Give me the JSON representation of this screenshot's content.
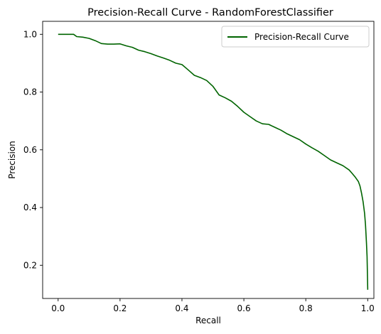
{
  "chart_data": {
    "type": "line",
    "title": "Precision-Recall Curve - RandomForestClassifier",
    "xlabel": "Recall",
    "ylabel": "Precision",
    "xlim": [
      -0.05,
      1.02
    ],
    "ylim": [
      0.085,
      1.045
    ],
    "xticks": [
      "0.0",
      "0.2",
      "0.4",
      "0.6",
      "0.8",
      "1.0"
    ],
    "xtick_values": [
      0.0,
      0.2,
      0.4,
      0.6,
      0.8,
      1.0
    ],
    "yticks": [
      "0.2",
      "0.4",
      "0.6",
      "0.8",
      "1.0"
    ],
    "ytick_values": [
      0.2,
      0.4,
      0.6,
      0.8,
      1.0
    ],
    "grid": false,
    "legend_placement": "top-right",
    "series": [
      {
        "name": "Precision-Recall Curve",
        "color": "#006400",
        "x": [
          0.0,
          0.05,
          0.06,
          0.08,
          0.1,
          0.12,
          0.14,
          0.16,
          0.18,
          0.2,
          0.22,
          0.24,
          0.26,
          0.28,
          0.3,
          0.32,
          0.34,
          0.36,
          0.38,
          0.4,
          0.42,
          0.44,
          0.46,
          0.48,
          0.5,
          0.52,
          0.54,
          0.56,
          0.58,
          0.6,
          0.62,
          0.64,
          0.66,
          0.68,
          0.7,
          0.72,
          0.74,
          0.76,
          0.78,
          0.8,
          0.82,
          0.84,
          0.86,
          0.88,
          0.9,
          0.92,
          0.94,
          0.95,
          0.96,
          0.97,
          0.975,
          0.98,
          0.985,
          0.99,
          0.993,
          0.996,
          0.998,
          0.999,
          1.0,
          1.0
        ],
        "y": [
          1.0,
          1.0,
          0.992,
          0.99,
          0.986,
          0.978,
          0.968,
          0.966,
          0.966,
          0.967,
          0.96,
          0.955,
          0.945,
          0.94,
          0.933,
          0.925,
          0.918,
          0.91,
          0.9,
          0.895,
          0.877,
          0.858,
          0.85,
          0.84,
          0.82,
          0.79,
          0.78,
          0.768,
          0.75,
          0.73,
          0.715,
          0.7,
          0.69,
          0.688,
          0.678,
          0.668,
          0.655,
          0.645,
          0.635,
          0.62,
          0.607,
          0.595,
          0.58,
          0.565,
          0.555,
          0.545,
          0.53,
          0.518,
          0.505,
          0.49,
          0.475,
          0.45,
          0.42,
          0.38,
          0.34,
          0.28,
          0.23,
          0.17,
          0.12,
          0.115
        ]
      }
    ]
  }
}
